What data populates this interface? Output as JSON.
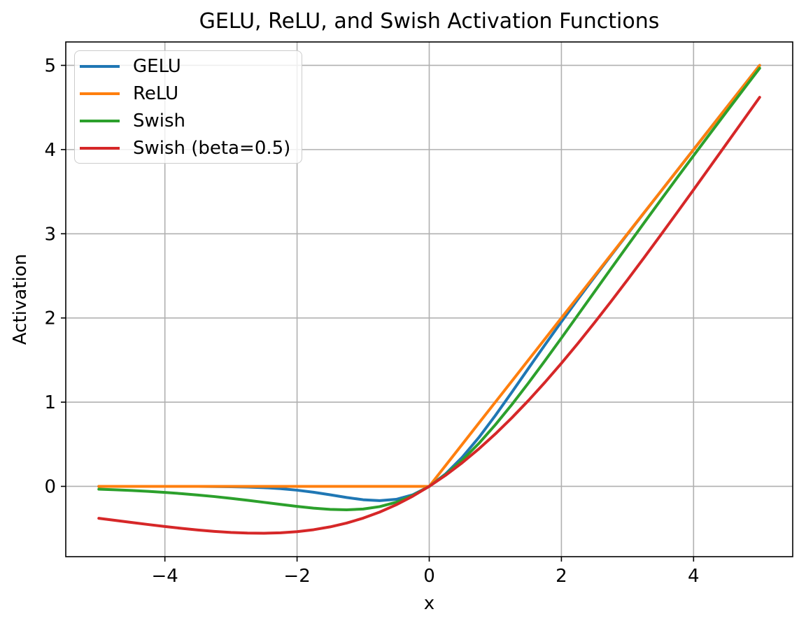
{
  "chart_data": {
    "type": "line",
    "title": "GELU, ReLU, and Swish Activation Functions",
    "xlabel": "x",
    "ylabel": "Activation",
    "xlim": [
      -5.5,
      5.5
    ],
    "ylim": [
      -0.835,
      5.278
    ],
    "grid": true,
    "grid_color": "#b0b0b0",
    "axes_color": "#000000",
    "background_color": "#ffffff",
    "legend_position": "upper left",
    "xticks": {
      "values": [
        -4,
        -2,
        0,
        2,
        4
      ],
      "labels": [
        "−4",
        "−2",
        "0",
        "2",
        "4"
      ]
    },
    "yticks": {
      "values": [
        0,
        1,
        2,
        3,
        4,
        5
      ],
      "labels": [
        "0",
        "1",
        "2",
        "3",
        "4",
        "5"
      ]
    },
    "x": [
      -5,
      -4.75,
      -4.5,
      -4.25,
      -4,
      -3.75,
      -3.5,
      -3.25,
      -3,
      -2.75,
      -2.5,
      -2.25,
      -2,
      -1.75,
      -1.5,
      -1.25,
      -1,
      -0.75,
      -0.5,
      -0.25,
      0,
      0.25,
      0.5,
      0.75,
      1,
      1.25,
      1.5,
      1.75,
      2,
      2.25,
      2.5,
      2.75,
      3,
      3.25,
      3.5,
      3.75,
      4,
      4.25,
      4.5,
      4.75,
      5
    ],
    "series": [
      {
        "name": "GELU",
        "color": "#1f77b4",
        "values": [
          0,
          0,
          0,
          0,
          -0.0001,
          -0.0003,
          -0.0008,
          -0.0019,
          -0.004,
          -0.0082,
          -0.0155,
          -0.0275,
          -0.0455,
          -0.0701,
          -0.1002,
          -0.1321,
          -0.1587,
          -0.17,
          -0.1543,
          -0.1003,
          0,
          0.1497,
          0.3457,
          0.58,
          0.8413,
          1.118,
          1.3998,
          1.6798,
          1.9545,
          2.2226,
          2.4845,
          2.7418,
          2.996,
          3.2481,
          3.4992,
          3.7497,
          3.9999,
          4.25,
          4.5,
          4.75,
          5
        ]
      },
      {
        "name": "ReLU",
        "color": "#ff7f0e",
        "values": [
          0,
          0,
          0,
          0,
          0,
          0,
          0,
          0,
          0,
          0,
          0,
          0,
          0,
          0,
          0,
          0,
          0,
          0,
          0,
          0,
          0,
          0.25,
          0.5,
          0.75,
          1,
          1.25,
          1.5,
          1.75,
          2,
          2.25,
          2.5,
          2.75,
          3,
          3.25,
          3.5,
          3.75,
          4,
          4.25,
          4.5,
          4.75,
          5
        ]
      },
      {
        "name": "Swish",
        "color": "#2ca02c",
        "values": [
          -0.0335,
          -0.0409,
          -0.0495,
          -0.0599,
          -0.0719,
          -0.0862,
          -0.1026,
          -0.1212,
          -0.1423,
          -0.1652,
          -0.1897,
          -0.2145,
          -0.2384,
          -0.2591,
          -0.2736,
          -0.2784,
          -0.2689,
          -0.2406,
          -0.1888,
          -0.1095,
          0,
          0.1406,
          0.3112,
          0.5094,
          0.7311,
          0.9716,
          1.2264,
          1.4909,
          1.7616,
          2.0355,
          2.3103,
          2.5847,
          2.8577,
          3.1287,
          3.3974,
          3.6638,
          3.9281,
          4.19,
          4.4505,
          4.7092,
          4.9665
        ]
      },
      {
        "name": "Swish (beta=0.5)",
        "color": "#d62728",
        "values": [
          -0.3793,
          -0.4042,
          -0.429,
          -0.4534,
          -0.4768,
          -0.4988,
          -0.5181,
          -0.5346,
          -0.5471,
          -0.555,
          -0.5568,
          -0.5515,
          -0.5379,
          -0.5149,
          -0.4812,
          -0.4358,
          -0.3775,
          -0.3055,
          -0.2189,
          -0.1172,
          0,
          0.1328,
          0.2811,
          0.4445,
          0.6225,
          0.8143,
          1.0187,
          1.2352,
          1.4621,
          1.6985,
          1.9433,
          2.195,
          2.4528,
          2.7154,
          2.9817,
          3.2513,
          3.5232,
          3.7965,
          4.071,
          4.3458,
          4.6206
        ]
      }
    ]
  }
}
